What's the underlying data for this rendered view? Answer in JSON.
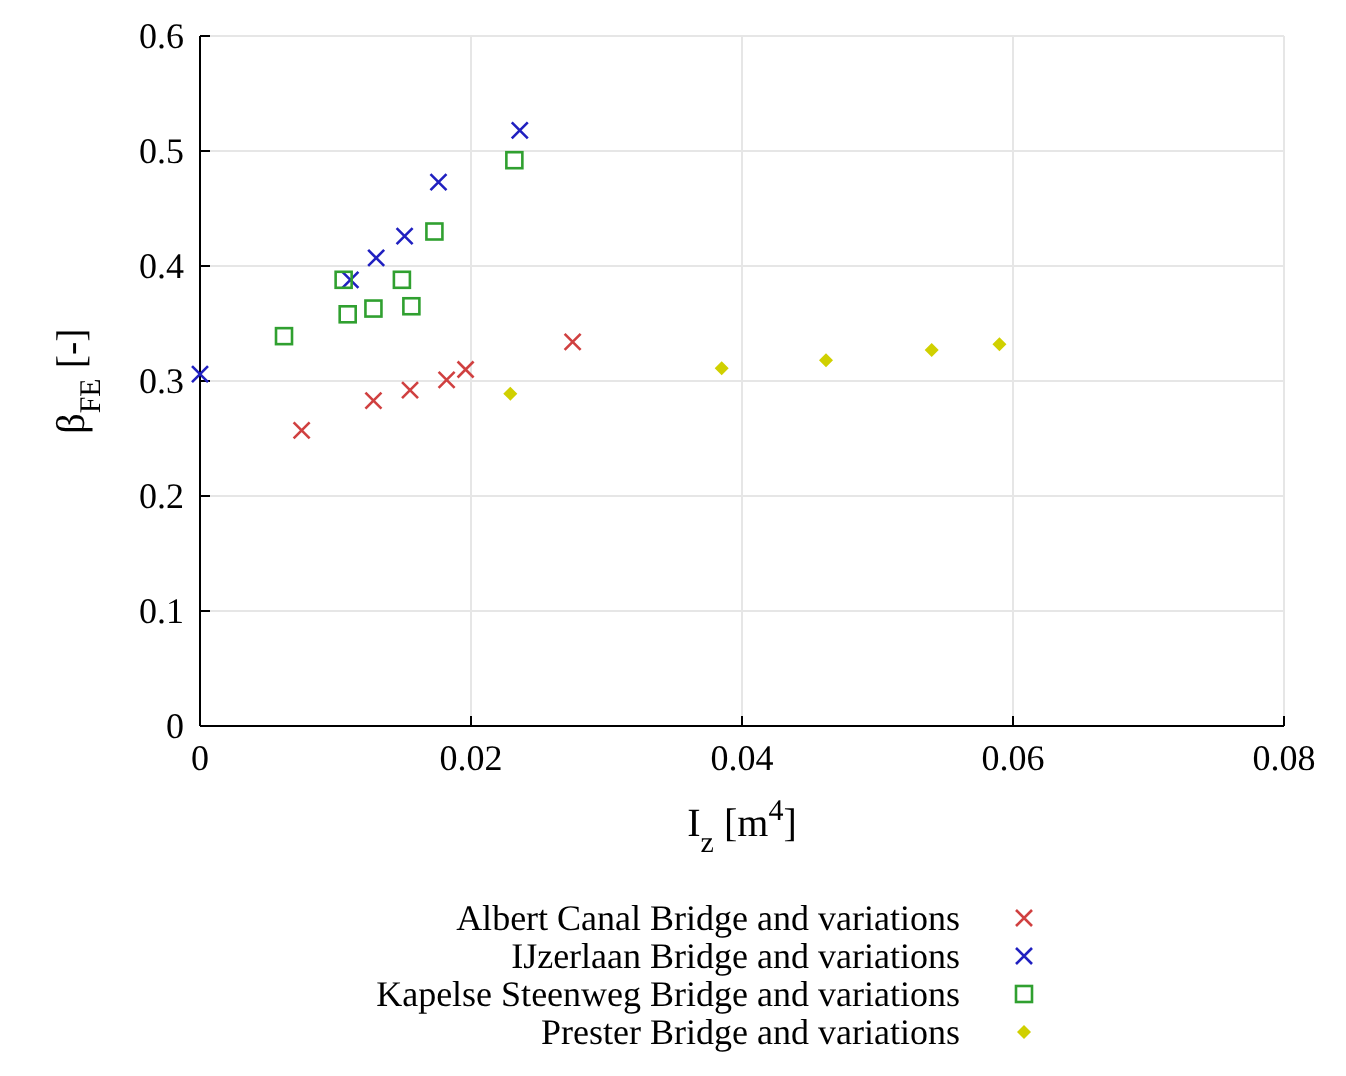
{
  "chart_data": {
    "type": "scatter",
    "xlabel": "I$_{z}$ [m$^{4}$]",
    "ylabel": "β$_{FE}$ [-]",
    "xlim": [
      0,
      0.08
    ],
    "xticks": [
      0,
      0.02,
      0.04,
      0.06,
      0.08
    ],
    "ylim": [
      0,
      0.6
    ],
    "yticks": [
      0,
      0.1,
      0.2,
      0.3,
      0.4,
      0.5,
      0.6
    ],
    "grid": true,
    "legend": "bottom",
    "series": [
      {
        "name": "Albert Canal Bridge and variations",
        "color": "#d04040",
        "marker": "cross",
        "x": [
          0.0075,
          0.0128,
          0.0155,
          0.0182,
          0.0196,
          0.0275
        ],
        "values": [
          0.257,
          0.283,
          0.292,
          0.301,
          0.31,
          0.334
        ]
      },
      {
        "name": "IJzerlaan Bridge and variations",
        "color": "#2020c0",
        "marker": "cross",
        "x": [
          0,
          0.0111,
          0.013,
          0.0151,
          0.0176,
          0.0236
        ],
        "values": [
          0.306,
          0.388,
          0.407,
          0.426,
          0.473,
          0.518
        ]
      },
      {
        "name": "Kapelse Steenweg Bridge and variations",
        "color": "#30a030",
        "marker": "square",
        "x": [
          0.0062,
          0.0106,
          0.0109,
          0.0128,
          0.0149,
          0.0156,
          0.0173,
          0.0232
        ],
        "values": [
          0.339,
          0.388,
          0.358,
          0.363,
          0.388,
          0.365,
          0.43,
          0.492
        ]
      },
      {
        "name": "Prester Bridge and variations",
        "color": "#d0d000",
        "marker": "diamond",
        "x": [
          0.0229,
          0.0385,
          0.0462,
          0.054,
          0.059
        ],
        "values": [
          0.289,
          0.311,
          0.318,
          0.327,
          0.332
        ]
      }
    ]
  }
}
